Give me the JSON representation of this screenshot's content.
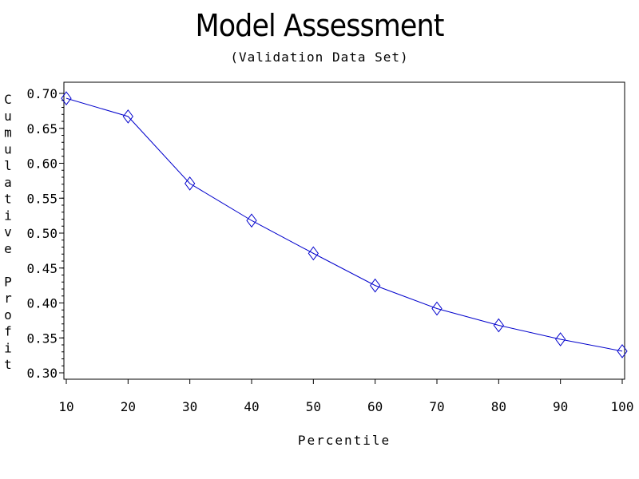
{
  "chart_data": {
    "type": "line",
    "title": "Model Assessment",
    "subtitle": "(Validation Data Set)",
    "xlabel": "Percentile",
    "ylabel": "Cumulative Profit",
    "x": [
      10,
      20,
      30,
      40,
      50,
      60,
      70,
      80,
      90,
      100
    ],
    "series": [
      {
        "values": [
          0.693,
          0.667,
          0.571,
          0.518,
          0.471,
          0.425,
          0.392,
          0.368,
          0.348,
          0.331
        ]
      }
    ],
    "xlim": [
      10,
      100
    ],
    "ylim": [
      0.3,
      0.7
    ],
    "xticks": [
      "10",
      "20",
      "30",
      "40",
      "50",
      "60",
      "70",
      "80",
      "90",
      "100"
    ],
    "yticks": [
      "0.30",
      "0.35",
      "0.40",
      "0.45",
      "0.50",
      "0.55",
      "0.60",
      "0.65",
      "0.70"
    ],
    "marker": "diamond",
    "line_color": "#0000cc",
    "marker_color": "#0000cc",
    "grid": false,
    "legend": "none"
  }
}
